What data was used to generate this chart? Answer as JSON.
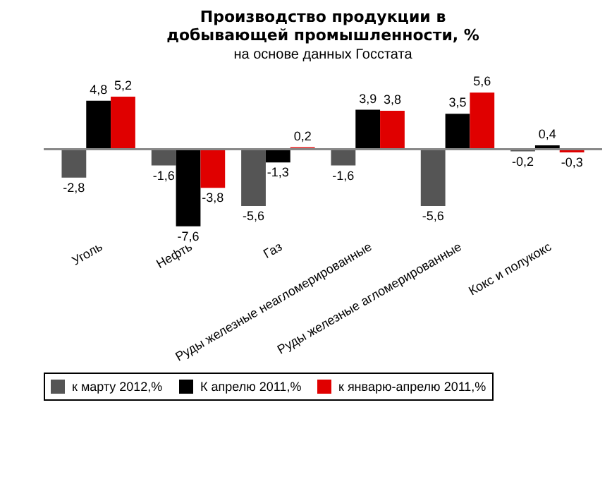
{
  "chart_data": {
    "type": "bar",
    "title": "Производство продукции в добывающей промышленности, %",
    "subtitle": "на основе данных Госстата",
    "categories": [
      "Уголь",
      "Нефть",
      "Газ",
      "Руды железные неагломерированные",
      "Руды железные агломерированные",
      "Кокс и полукокс"
    ],
    "series": [
      {
        "name": "к марту 2012,%",
        "color": "#555555",
        "values": [
          -2.8,
          -1.6,
          -5.6,
          -1.6,
          -5.6,
          -0.2
        ],
        "value_labels": [
          "-2,8",
          "-1,6",
          "-5,6",
          "-1,6",
          "-5,6",
          "-0,2"
        ]
      },
      {
        "name": "К апрелю 2011,%",
        "color": "#000000",
        "values": [
          4.8,
          -7.6,
          -1.3,
          3.9,
          3.5,
          0.4
        ],
        "value_labels": [
          "4,8",
          "-7,6",
          "-1,3",
          "3,9",
          "3,5",
          "0,4"
        ]
      },
      {
        "name": "к январю-апрелю 2011,%",
        "color": "#e00000",
        "values": [
          5.2,
          -3.8,
          0.2,
          3.8,
          5.6,
          -0.3
        ],
        "value_labels": [
          "5,2",
          "-3,8",
          "0,2",
          "3,8",
          "5,6",
          "-0,3"
        ]
      }
    ],
    "legend": "bottom"
  }
}
